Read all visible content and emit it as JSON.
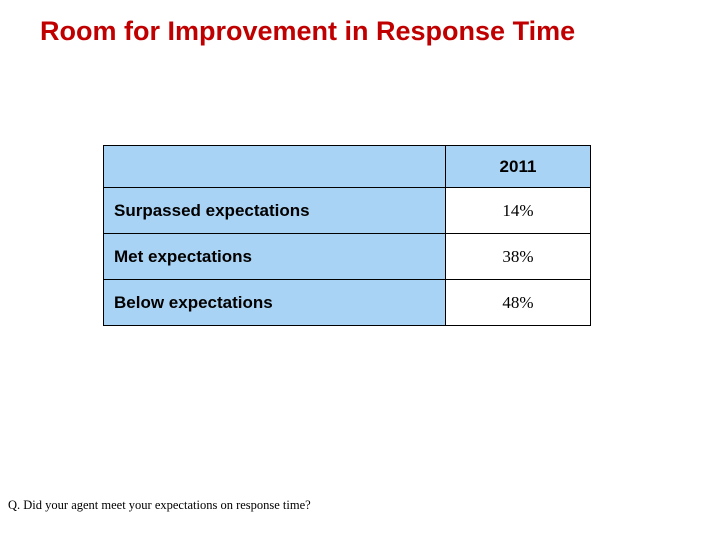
{
  "slide": {
    "title": "Room for Improvement in Response Time",
    "footnote": "Q. Did your agent meet your expectations on response time?"
  },
  "table": {
    "header": {
      "blank": "",
      "year": "2011"
    },
    "rows": [
      {
        "label": "Surpassed expectations",
        "value": "14%"
      },
      {
        "label": "Met expectations",
        "value": "38%"
      },
      {
        "label": "Below expectations",
        "value": "48%"
      }
    ]
  },
  "chart_data": {
    "type": "table",
    "title": "Room for Improvement in Response Time",
    "columns": [
      "",
      "2011"
    ],
    "categories": [
      "Surpassed expectations",
      "Met expectations",
      "Below expectations"
    ],
    "values": [
      14,
      38,
      48
    ],
    "unit": "%",
    "footnote": "Q. Did your agent meet your expectations on response time?"
  },
  "colors": {
    "title_red": "#c00000",
    "cell_blue": "#a9d3f4",
    "border": "#000000",
    "background": "#ffffff"
  }
}
